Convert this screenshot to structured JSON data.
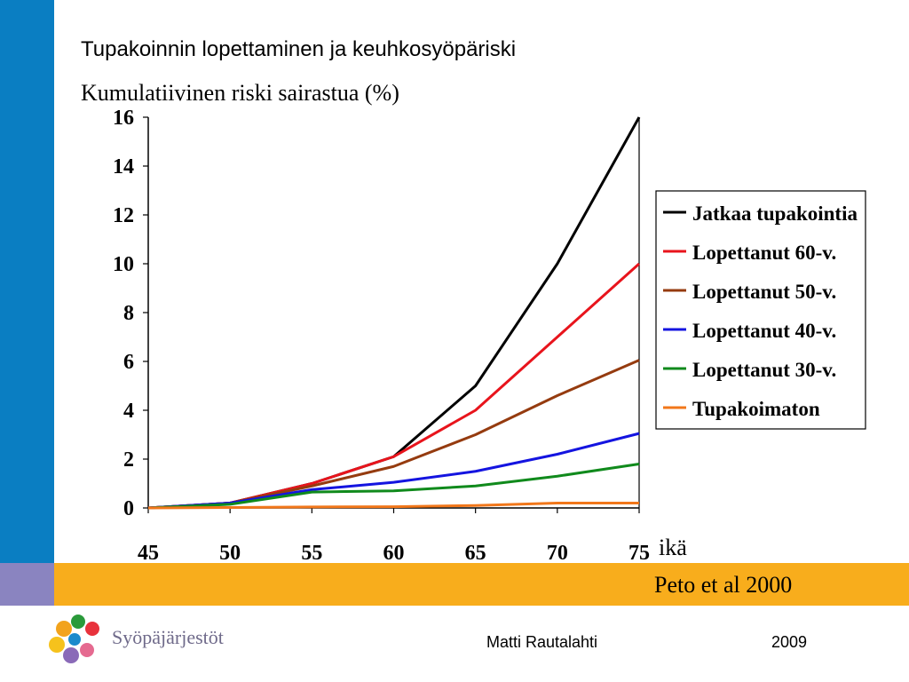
{
  "slide": {
    "title": "Tupakoinnin lopettaminen ja keuhkosyöpäriski",
    "citation": "Peto et al 2000",
    "footer_author": "Matti Rautalahti",
    "footer_year": "2009",
    "org_name": "Syöpäjärjestöt",
    "colors": {
      "side_bar": "#0a7ec2",
      "band": "#f8ad1c",
      "corner": "#8a84c0"
    }
  },
  "chart_data": {
    "type": "line",
    "title": "",
    "ylabel": "Kumulatiivinen riski sairastua (%)",
    "xlabel": "ikä",
    "x": [
      45,
      50,
      55,
      60,
      65,
      70,
      75
    ],
    "xlim": [
      45,
      75
    ],
    "ylim": [
      0,
      16
    ],
    "yticks": [
      0,
      2,
      4,
      6,
      8,
      10,
      12,
      14,
      16
    ],
    "xticks": [
      45,
      50,
      55,
      60,
      65,
      70,
      75
    ],
    "grid": false,
    "legend_position": "right",
    "series": [
      {
        "name": "Jatkaa tupakointia",
        "color": "#000000",
        "values": [
          0,
          0.2,
          1.0,
          2.1,
          5.0,
          10.0,
          16.0
        ]
      },
      {
        "name": "Lopettanut 60-v.",
        "color": "#e8141c",
        "values": [
          0,
          0.2,
          1.0,
          2.1,
          4.0,
          7.0,
          10.0
        ]
      },
      {
        "name": "Lopettanut 50-v.",
        "color": "#953b0f",
        "values": [
          0,
          0.2,
          0.9,
          1.7,
          3.0,
          4.6,
          6.05
        ]
      },
      {
        "name": "Lopettanut 40-v.",
        "color": "#1414e0",
        "values": [
          0,
          0.2,
          0.75,
          1.05,
          1.5,
          2.2,
          3.05
        ]
      },
      {
        "name": "Lopettanut 30-v.",
        "color": "#108a1c",
        "values": [
          0,
          0.15,
          0.65,
          0.7,
          0.9,
          1.3,
          1.8
        ]
      },
      {
        "name": "Tupakoimaton",
        "color": "#f2771a",
        "values": [
          0,
          0.02,
          0.04,
          0.05,
          0.1,
          0.2,
          0.2
        ]
      }
    ]
  }
}
